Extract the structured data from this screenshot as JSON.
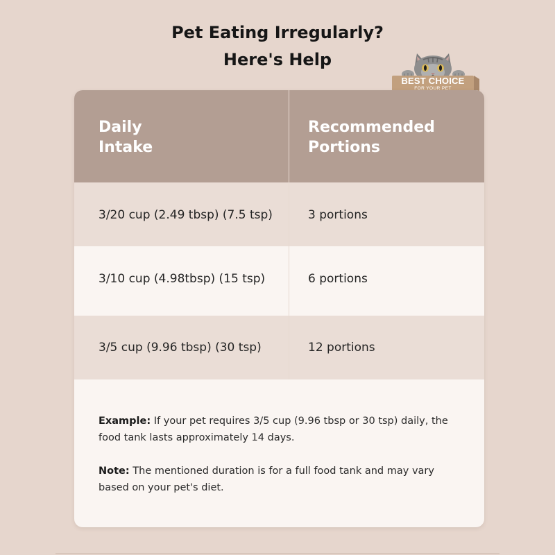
{
  "title": {
    "line1": "Pet Eating Irregularly?",
    "line2": "Here's Help"
  },
  "badge": {
    "title": "BEST CHOICE",
    "subtitle": "FOR YOUR PET",
    "icon": "cat-peeking-icon",
    "colors": {
      "bar": "#c2a07e",
      "cat": "#8f8f8f"
    }
  },
  "table": {
    "headers": [
      {
        "line1": "Daily",
        "line2": "Intake"
      },
      {
        "line1": "Recommended",
        "line2": "Portions"
      }
    ],
    "rows": [
      {
        "intake": "3/20 cup (2.49 tbsp) (7.5 tsp)",
        "portions": "3 portions"
      },
      {
        "intake": "3/10 cup (4.98tbsp) (15 tsp)",
        "portions": "6 portions"
      },
      {
        "intake": "3/5 cup (9.96 tbsp) (30 tsp)",
        "portions": "12 portions"
      }
    ]
  },
  "notes": {
    "example_label": "Example:",
    "example_text": " If your pet requires 3/5 cup (9.96 tbsp or 30 tsp) daily, the food tank lasts approximately 14 days.",
    "note_label": "Note:",
    "note_text": " The mentioned duration is for a full food tank and may vary based on your pet's diet."
  },
  "colors": {
    "background": "#e6d6cd",
    "header": "#b39e93",
    "row_alt": "#eaddd6",
    "row_light": "#faf5f2"
  }
}
